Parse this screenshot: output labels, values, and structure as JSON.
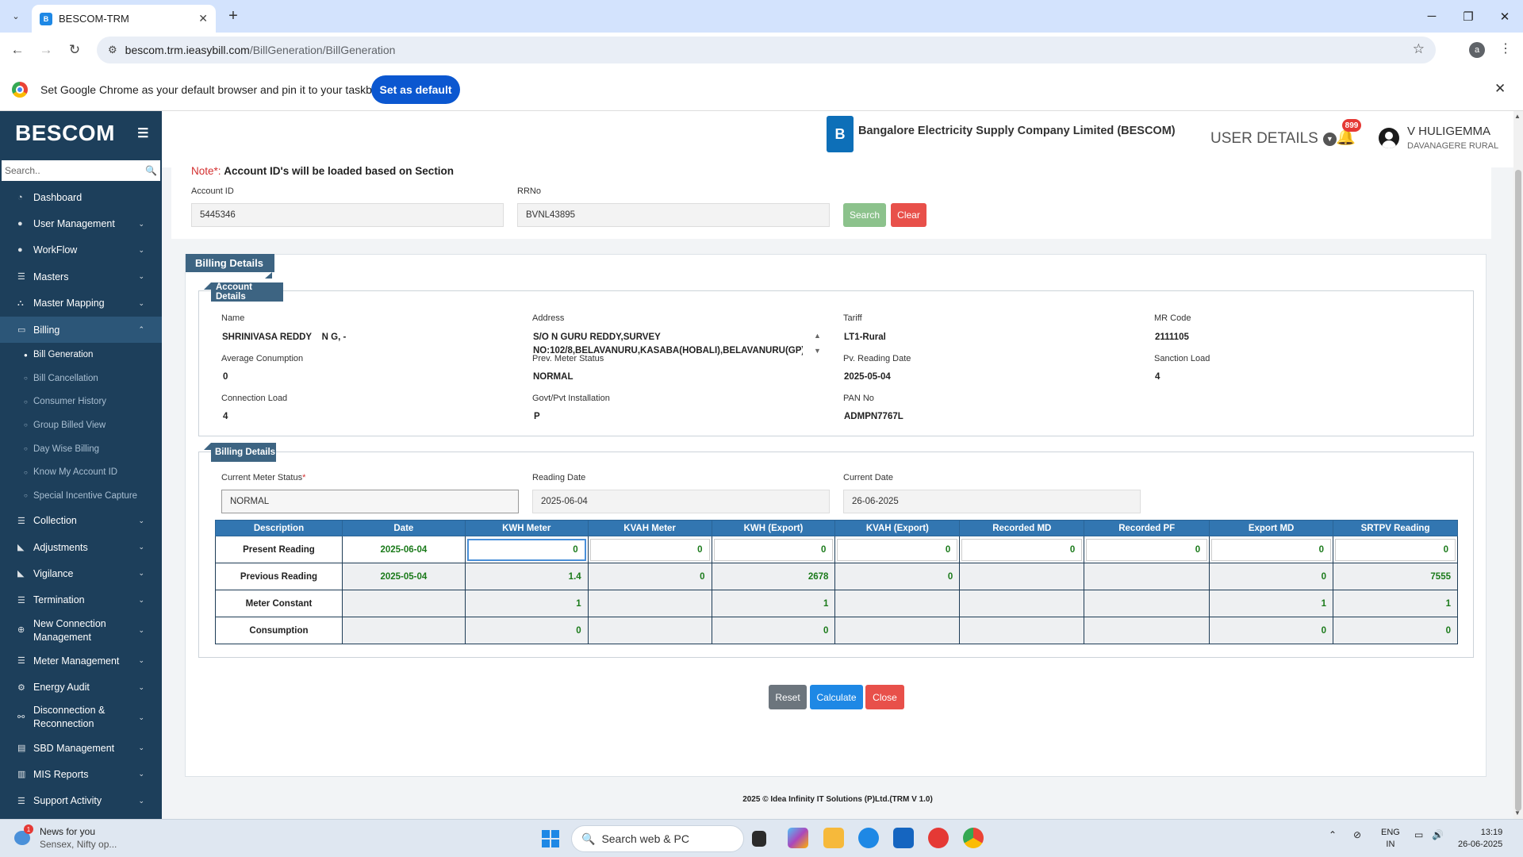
{
  "browser": {
    "tab_title": "BESCOM-TRM",
    "tab_favicon": "B",
    "url_host": "bescom.trm.ieasybill.com",
    "url_path": "/BillGeneration/BillGeneration",
    "profile_initial": "a",
    "infobar_text": "Set Google Chrome as your default browser and pin it to your taskbar",
    "set_default_label": "Set as default"
  },
  "sidebar": {
    "brand": "BESCOM",
    "search_placeholder": "Search..",
    "items": [
      {
        "label": "Dashboard",
        "icon": "dashboard-icon"
      },
      {
        "label": "User Management",
        "icon": "user-icon"
      },
      {
        "label": "WorkFlow",
        "icon": "user-icon"
      },
      {
        "label": "Masters",
        "icon": "list-icon"
      },
      {
        "label": "Master Mapping",
        "icon": "sitemap-icon"
      },
      {
        "label": "Billing",
        "icon": "monitor-icon"
      },
      {
        "label": "Collection",
        "icon": "list-icon"
      },
      {
        "label": "Adjustments",
        "icon": "chart-icon"
      },
      {
        "label": "Vigilance",
        "icon": "chart-icon"
      },
      {
        "label": "Termination",
        "icon": "list-icon"
      },
      {
        "label": "New Connection Management",
        "icon": "plus-circle-icon"
      },
      {
        "label": "Meter Management",
        "icon": "list-icon"
      },
      {
        "label": "Energy Audit",
        "icon": "gears-icon"
      },
      {
        "label": "Disconnection & Reconnection",
        "icon": "link-icon"
      },
      {
        "label": "SBD Management",
        "icon": "server-icon"
      },
      {
        "label": "MIS Reports",
        "icon": "bar-chart-icon"
      },
      {
        "label": "Support Activity",
        "icon": "list-icon"
      }
    ],
    "billing_sub": [
      "Bill Generation",
      "Bill Cancellation",
      "Consumer History",
      "Group Billed View",
      "Day Wise Billing",
      "Know My Account ID",
      "Special Incentive Capture"
    ]
  },
  "header": {
    "company": "Bangalore Electricity Supply Company Limited (BESCOM)",
    "user_details": "USER DETAILS",
    "notif_count": "899",
    "user_name": "V HULIGEMMA",
    "user_location": "DAVANAGERE RURAL"
  },
  "search": {
    "note_prefix": "Note*:",
    "note_text": "Account ID's will be loaded based on Section",
    "account_label": "Account ID",
    "account_value": "5445346",
    "rrno_label": "RRNo",
    "rrno_value": "BVNL43895",
    "search_btn": "Search",
    "clear_btn": "Clear"
  },
  "billing": {
    "outer_title": "Billing Details",
    "account_title": "Account Details",
    "fields": {
      "name_l": "Name",
      "name_v": "SHRINIVASA REDDY    N G, -",
      "addr_l": "Address",
      "addr_v1": "S/O N GURU REDDY,SURVEY",
      "addr_v2": "NO:102/8,BELAVANURU,KASABA(HOBALI),BELAVANURU(GP),",
      "tariff_l": "Tariff",
      "tariff_v": "LT1-Rural",
      "mr_l": "MR Code",
      "mr_v": "2111105",
      "avg_l": "Average Conumption",
      "avg_v": "0",
      "pms_l": "Prev. Meter Status",
      "pms_v": "NORMAL",
      "prd_l": "Pv. Reading Date",
      "prd_v": "2025-05-04",
      "sl_l": "Sanction Load",
      "sl_v": "4",
      "cl_l": "Connection Load",
      "cl_v": "4",
      "gov_l": "Govt/Pvt Installation",
      "gov_v": "P",
      "pan_l": "PAN No",
      "pan_v": "ADMPN7767L"
    },
    "billing_title": "Billing Details",
    "cms_l": "Current Meter Status",
    "cms_v": "NORMAL",
    "rd_l": "Reading Date",
    "rd_v": "2025-06-04",
    "cd_l": "Current Date",
    "cd_v": "26-06-2025",
    "columns": [
      "Description",
      "Date",
      "KWH Meter",
      "KVAH Meter",
      "KWH (Export)",
      "KVAH (Export)",
      "Recorded MD",
      "Recorded PF",
      "Export MD",
      "SRTPV Reading"
    ],
    "rows": [
      [
        "Present Reading",
        "2025-06-04",
        "0",
        "0",
        "0",
        "0",
        "0",
        "0",
        "0",
        "0"
      ],
      [
        "Previous Reading",
        "2025-05-04",
        "1.4",
        "0",
        "2678",
        "0",
        "",
        "",
        "0",
        "7555"
      ],
      [
        "Meter Constant",
        "",
        "1",
        "",
        "1",
        "",
        "",
        "",
        "1",
        "1"
      ],
      [
        "Consumption",
        "",
        "0",
        "",
        "0",
        "",
        "",
        "",
        "0",
        "0"
      ]
    ],
    "reset_btn": "Reset",
    "calc_btn": "Calculate",
    "close_btn": "Close"
  },
  "footer": "2025 © Idea Infinity IT Solutions (P)Ltd.(TRM V 1.0)",
  "taskbar": {
    "news1": "News for you",
    "news2": "Sensex, Nifty op...",
    "news_badge": "1",
    "search": "Search web & PC",
    "lang1": "ENG",
    "lang2": "IN",
    "time": "13:19",
    "date": "26-06-2025"
  }
}
